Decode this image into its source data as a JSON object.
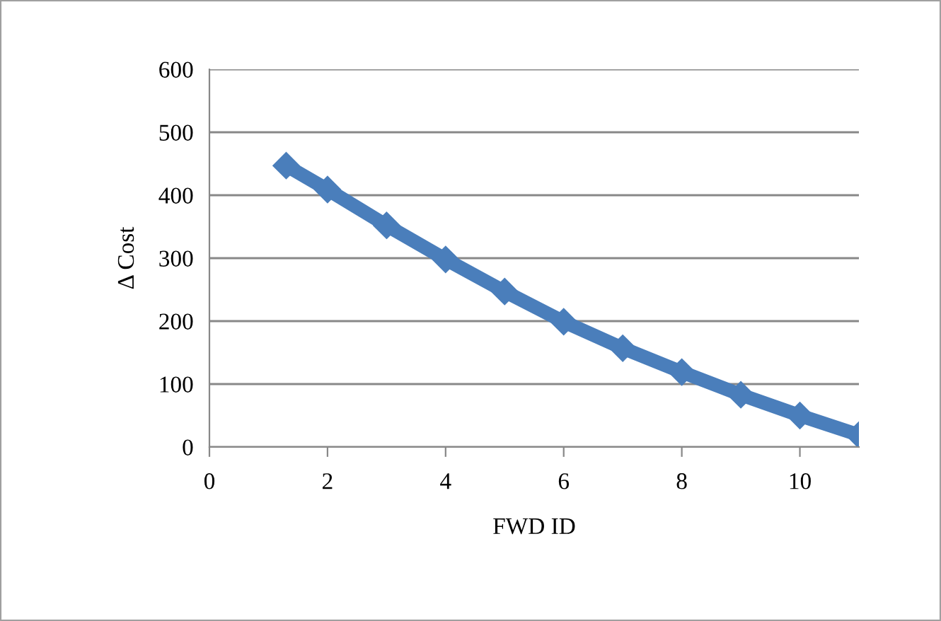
{
  "chart_data": {
    "type": "line",
    "xlabel": "FWD ID",
    "ylabel": "Δ Cost",
    "x": [
      1.3,
      2,
      3,
      4,
      5,
      6,
      7,
      8,
      9,
      10,
      11
    ],
    "series": [
      {
        "color": "#4a7ebb",
        "values": [
          447,
          409,
          352,
          298,
          247,
          199,
          157,
          119,
          83,
          50,
          19
        ]
      }
    ],
    "xlim": [
      0,
      11
    ],
    "xticks": [
      0,
      2,
      4,
      6,
      8,
      10
    ],
    "ylim": [
      0,
      600
    ],
    "yticks": [
      0,
      100,
      200,
      300,
      400,
      500,
      600
    ],
    "grid": "y",
    "marker": "diamond",
    "line_style": "solid",
    "legend": false
  }
}
